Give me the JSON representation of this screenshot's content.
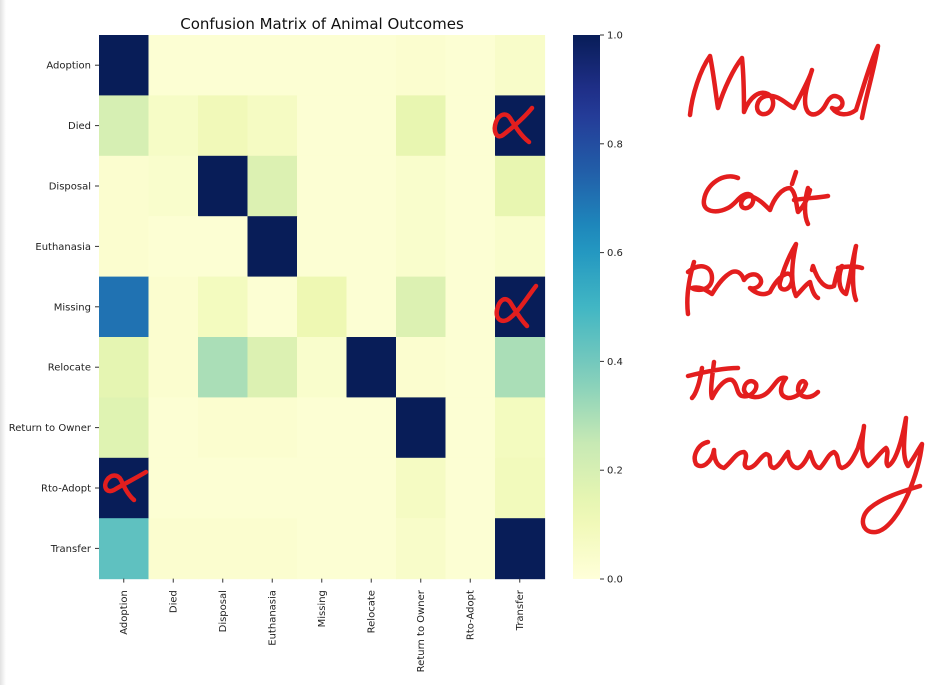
{
  "chart_data": {
    "type": "heatmap",
    "title": "Confusion Matrix of Animal Outcomes",
    "xlabel": "",
    "ylabel": "",
    "row_labels": [
      "Adoption",
      "Died",
      "Disposal",
      "Euthanasia",
      "Missing",
      "Relocate",
      "Return to Owner",
      "Rto-Adopt",
      "Transfer"
    ],
    "col_labels": [
      "Adoption",
      "Died",
      "Disposal",
      "Euthanasia",
      "Missing",
      "Relocate",
      "Return to Owner",
      "Rto-Adopt",
      "Transfer"
    ],
    "values": [
      [
        1.0,
        0.02,
        0.02,
        0.02,
        0.02,
        0.02,
        0.03,
        0.02,
        0.05
      ],
      [
        0.2,
        0.06,
        0.1,
        0.07,
        0.02,
        0.02,
        0.14,
        0.02,
        1.0
      ],
      [
        0.03,
        0.04,
        1.0,
        0.18,
        0.02,
        0.02,
        0.04,
        0.02,
        0.14
      ],
      [
        0.03,
        0.02,
        0.02,
        1.0,
        0.02,
        0.02,
        0.04,
        0.02,
        0.04
      ],
      [
        0.7,
        0.03,
        0.08,
        0.02,
        0.12,
        0.02,
        0.18,
        0.02,
        1.0
      ],
      [
        0.15,
        0.03,
        0.3,
        0.18,
        0.04,
        1.0,
        0.03,
        0.02,
        0.3
      ],
      [
        0.17,
        0.02,
        0.03,
        0.03,
        0.02,
        0.02,
        1.0,
        0.02,
        0.08
      ],
      [
        1.0,
        0.02,
        0.02,
        0.02,
        0.02,
        0.02,
        0.07,
        0.02,
        0.09
      ],
      [
        0.44,
        0.03,
        0.03,
        0.03,
        0.02,
        0.02,
        0.05,
        0.02,
        1.0
      ]
    ],
    "colorbar": {
      "colormap": "YlGnBu",
      "range": [
        0.0,
        1.0
      ],
      "tick_values": [
        0.0,
        0.2,
        0.4,
        0.6,
        0.8,
        1.0
      ],
      "tick_labels": [
        "0.0",
        "0.2",
        "0.4",
        "0.6",
        "0.8",
        "1.0"
      ]
    },
    "grid": false
  },
  "annotation": {
    "handwritten_text_lines": [
      "Model",
      "can't",
      "predict",
      "these",
      "accurately"
    ],
    "ink_color": "#e31e1e",
    "marks": [
      "x-mark on Died/Transfer",
      "x-mark on Missing/Transfer",
      "x-mark on Rto-Adopt/Adoption"
    ]
  }
}
